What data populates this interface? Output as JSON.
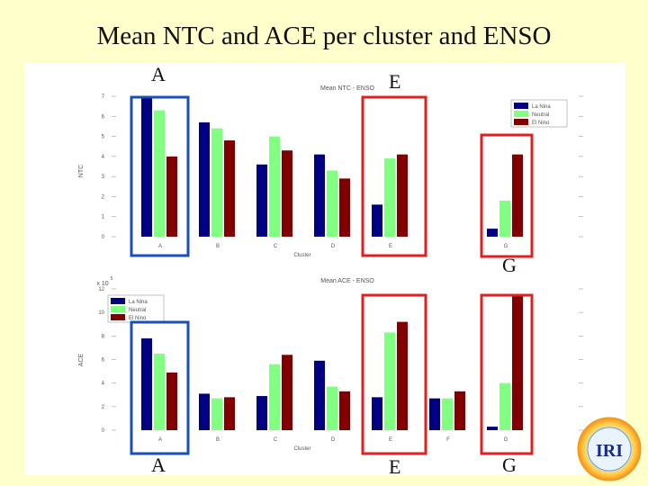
{
  "slide_title": "Mean NTC and ACE  per cluster and ENSO",
  "labels": {
    "top_A": "A",
    "top_E": "E",
    "mid_G": "G",
    "bottom_A": "A",
    "bottom_E": "E",
    "bottom_G": "G"
  },
  "logo_text": "IRI",
  "colors": {
    "la_nina": "#000080",
    "neutral": "#80ff80",
    "el_nino": "#800000",
    "highlight_blue": "#1a4fb8",
    "highlight_red": "#e02020"
  },
  "chart_data": [
    {
      "type": "bar",
      "title": "Mean NTC - ENSO",
      "xlabel": "Cluster",
      "ylabel": "NTC",
      "categories": [
        "A",
        "B",
        "C",
        "D",
        "E",
        "G"
      ],
      "ylim": [
        0,
        7
      ],
      "yticks": [
        0,
        1,
        2,
        3,
        4,
        5,
        6,
        7
      ],
      "legend_position": "top-right",
      "series": [
        {
          "name": "La Nina",
          "values": [
            7.0,
            5.7,
            3.6,
            4.1,
            1.6,
            0.4
          ],
          "color": "#000080"
        },
        {
          "name": "Neutral",
          "values": [
            6.3,
            5.4,
            5.0,
            3.3,
            3.9,
            1.8
          ],
          "color": "#80ff80"
        },
        {
          "name": "El Nino",
          "values": [
            4.0,
            4.8,
            4.3,
            2.9,
            4.1,
            4.1
          ],
          "color": "#800000"
        }
      ]
    },
    {
      "type": "bar",
      "title": "Mean ACE - ENSO",
      "xlabel": "Cluster",
      "ylabel": "ACE",
      "exponent_label": "x 10",
      "exponent_power": "5",
      "categories": [
        "A",
        "B",
        "C",
        "D",
        "E",
        "F",
        "G"
      ],
      "ylim": [
        0,
        12
      ],
      "yticks": [
        0,
        2,
        4,
        6,
        8,
        10,
        12
      ],
      "legend_position": "top-left",
      "series": [
        {
          "name": "La Nina",
          "values": [
            7.8,
            3.1,
            2.9,
            5.9,
            2.8,
            2.7,
            0.3
          ],
          "color": "#000080"
        },
        {
          "name": "Neutral",
          "values": [
            6.5,
            2.7,
            5.6,
            3.7,
            8.3,
            2.7,
            4.0
          ],
          "color": "#80ff80"
        },
        {
          "name": "El Nino",
          "values": [
            4.9,
            2.8,
            6.4,
            3.3,
            9.2,
            3.3,
            11.4
          ],
          "color": "#800000"
        }
      ]
    }
  ]
}
